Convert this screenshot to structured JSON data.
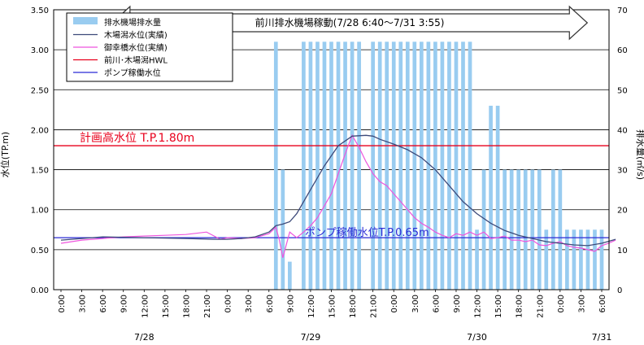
{
  "chart_data": {
    "type": "bar+line",
    "title": "",
    "ylabel_left": "水位(TP.m)",
    "ylabel_right": "排水量(㎥/s)",
    "ylim_left": [
      0,
      3.5
    ],
    "ylim_right": [
      0,
      70
    ],
    "yticks_left": [
      "0.00",
      "0.50",
      "1.00",
      "1.50",
      "2.00",
      "2.50",
      "3.00",
      "3.50"
    ],
    "yticks_right": [
      "0",
      "10",
      "20",
      "30",
      "40",
      "50",
      "60",
      "70"
    ],
    "x_start": "7/28 0:00",
    "x_step_hours": 3,
    "x_tick_labels": [
      "0:00",
      "3:00",
      "6:00",
      "9:00",
      "12:00",
      "15:00",
      "18:00",
      "21:00",
      "0:00",
      "3:00",
      "6:00",
      "9:00",
      "12:00",
      "15:00",
      "18:00",
      "21:00",
      "0:00",
      "3:00",
      "6:00",
      "9:00",
      "12:00",
      "15:00",
      "18:00",
      "21:00",
      "0:00",
      "3:00",
      "6:00"
    ],
    "date_labels": [
      {
        "label": "7/28",
        "hour": 12
      },
      {
        "label": "7/29",
        "hour": 36
      },
      {
        "label": "7/30",
        "hour": 60
      },
      {
        "label": "7/31",
        "hour": 78
      }
    ],
    "grid": true,
    "legend": "top-left",
    "legend_items": [
      {
        "name": "排水機場排水量",
        "kind": "bar",
        "color": "#99ccf0"
      },
      {
        "name": "木場潟水位(実績)",
        "kind": "line",
        "color": "#3d4a7a"
      },
      {
        "name": "御幸橋水位(実績)",
        "kind": "line",
        "color": "#ee55dd"
      },
      {
        "name": "前川･木場潟HWL",
        "kind": "line",
        "color": "#e8001c"
      },
      {
        "name": "ポンプ稼働水位",
        "kind": "line",
        "color": "#2a2ad6"
      }
    ],
    "banner": "前川排水機場稼動(7/28 6:40～7/31 3:55)",
    "banner_range_hours": [
      6.67,
      75.92
    ],
    "annotations": [
      {
        "text": "計画高水位 T.P.1.80m",
        "color": "#e8001c"
      },
      {
        "text": "ポンプ稼働水位T.P.0.65m",
        "color": "#2a2ad6"
      }
    ],
    "hwl_level": 1.8,
    "pump_level": 0.65,
    "discharge_series": {
      "name": "排水機場排水量",
      "unit": "㎥/s",
      "hours": [
        31,
        32,
        33,
        35,
        36,
        37,
        38,
        39,
        40,
        41,
        42,
        43,
        45,
        46,
        47,
        48,
        49,
        50,
        51,
        52,
        53,
        54,
        55,
        56,
        57,
        58,
        59,
        60,
        61,
        62,
        63,
        64,
        65,
        66,
        67,
        68,
        69,
        70,
        71,
        72,
        73,
        74,
        75,
        76,
        77,
        78
      ],
      "values": [
        62,
        30,
        7,
        62,
        62,
        62,
        62,
        62,
        62,
        62,
        62,
        62,
        62,
        62,
        62,
        62,
        62,
        62,
        62,
        62,
        62,
        62,
        62,
        62,
        62,
        62,
        62,
        15,
        30,
        46,
        46,
        30,
        30,
        30,
        30,
        30,
        30,
        15,
        30,
        30,
        15,
        15,
        15,
        15,
        15,
        15
      ]
    },
    "kibagata_series": {
      "name": "木場潟水位(実績)",
      "hours": [
        0,
        6,
        12,
        18,
        22,
        24,
        26,
        28,
        30,
        31,
        32,
        33,
        34,
        36,
        38,
        40,
        42,
        44,
        45,
        46,
        48,
        50,
        52,
        54,
        56,
        58,
        60,
        62,
        64,
        66,
        68,
        70,
        72,
        74,
        76,
        78,
        80
      ],
      "values": [
        0.62,
        0.66,
        0.65,
        0.64,
        0.63,
        0.63,
        0.64,
        0.66,
        0.72,
        0.8,
        0.82,
        0.85,
        0.95,
        1.25,
        1.55,
        1.8,
        1.92,
        1.93,
        1.92,
        1.88,
        1.82,
        1.75,
        1.65,
        1.5,
        1.3,
        1.1,
        0.95,
        0.83,
        0.74,
        0.68,
        0.64,
        0.6,
        0.58,
        0.56,
        0.55,
        0.58,
        0.63
      ]
    },
    "miyukibashi_series": {
      "name": "御幸橋水位(実績)",
      "hours": [
        0,
        3,
        6,
        9,
        12,
        15,
        18,
        21,
        23,
        24,
        26,
        28,
        30,
        31,
        31.5,
        32,
        33,
        34,
        35,
        36,
        37,
        38,
        39,
        40,
        41,
        42,
        43,
        44,
        45,
        46,
        47,
        48,
        49,
        50,
        51,
        52,
        53,
        54,
        55,
        56,
        57,
        58,
        59,
        60,
        61,
        62,
        63,
        64,
        65,
        66,
        67,
        68,
        69,
        70,
        71,
        72,
        73,
        74,
        75,
        76,
        77,
        78,
        79,
        80
      ],
      "values": [
        0.58,
        0.62,
        0.64,
        0.66,
        0.67,
        0.68,
        0.69,
        0.72,
        0.63,
        0.65,
        0.64,
        0.65,
        0.7,
        0.78,
        0.62,
        0.4,
        0.72,
        0.65,
        0.72,
        0.8,
        0.9,
        1.05,
        1.2,
        1.45,
        1.7,
        1.93,
        1.78,
        1.6,
        1.45,
        1.35,
        1.3,
        1.2,
        1.1,
        1.0,
        0.9,
        0.83,
        0.78,
        0.72,
        0.68,
        0.65,
        0.7,
        0.68,
        0.72,
        0.68,
        0.72,
        0.64,
        0.65,
        0.67,
        0.62,
        0.62,
        0.6,
        0.62,
        0.56,
        0.55,
        0.58,
        0.6,
        0.55,
        0.53,
        0.52,
        0.5,
        0.48,
        0.55,
        0.58,
        0.62
      ]
    }
  }
}
